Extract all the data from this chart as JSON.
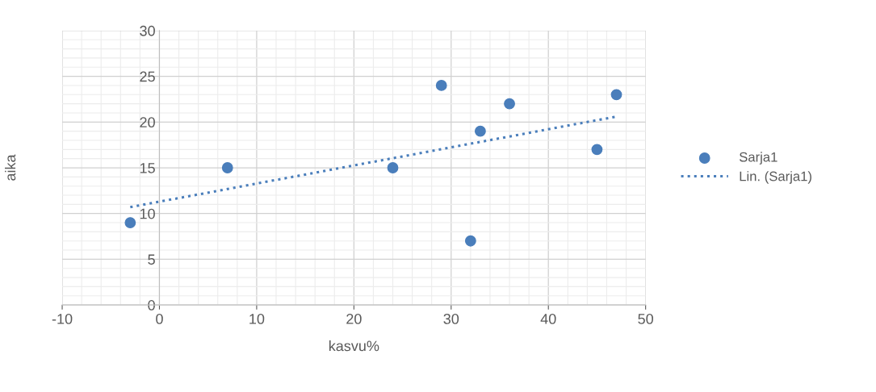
{
  "chart_data": {
    "type": "scatter",
    "xlabel": "kasvu%",
    "ylabel": "aika",
    "x": [
      -3,
      7,
      24,
      29,
      32,
      33,
      36,
      45,
      47
    ],
    "series": [
      {
        "name": "Sarja1",
        "color": "#4a7ebb",
        "values": [
          9,
          15,
          15,
          24,
          7,
          19,
          22,
          17,
          23
        ],
        "marker": "circle"
      },
      {
        "name": "Lin. (Sarja1)",
        "type": "line",
        "color": "#4a7ebb",
        "x": [
          -3,
          47
        ],
        "values": [
          10.7,
          20.6
        ],
        "line_style": "dotted",
        "marker": "none"
      }
    ],
    "xlim": [
      -10,
      50
    ],
    "xticks": [
      -10,
      0,
      10,
      20,
      30,
      40,
      50
    ],
    "ylim": [
      0,
      30
    ],
    "yticks": [
      0,
      5,
      10,
      15,
      20,
      25,
      30
    ],
    "grid": true,
    "legend": "right"
  }
}
